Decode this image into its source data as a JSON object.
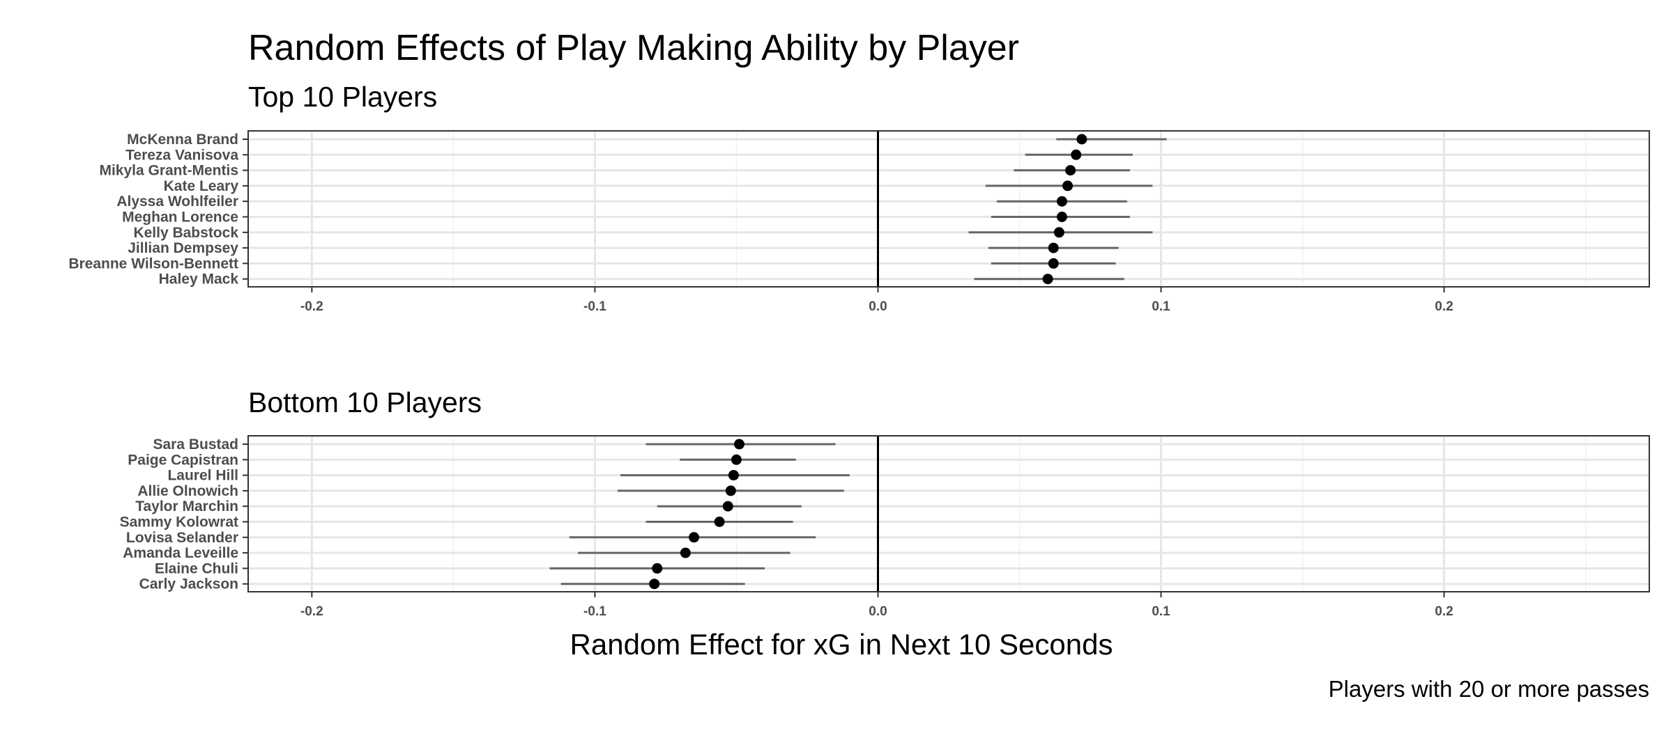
{
  "chart_data": {
    "type": "scatter",
    "title": "Random Effects of Play Making Ability by Player",
    "xlabel": "Random Effect for xG in Next 10 Seconds",
    "caption": "Players with 20 or more passes",
    "xlim": [
      -0.2225,
      0.2725
    ],
    "xticks": [
      -0.2,
      -0.1,
      0.0,
      0.1,
      0.2
    ],
    "xtick_labels": [
      "-0.2",
      "-0.1",
      "0.0",
      "0.1",
      "0.2"
    ],
    "reference_line": 0.0,
    "grid": true,
    "panels": [
      {
        "subtitle": "Top 10 Players",
        "players": [
          "McKenna Brand",
          "Tereza Vanisova",
          "Mikyla Grant-Mentis",
          "Kate Leary",
          "Alyssa Wohlfeiler",
          "Meghan Lorence",
          "Kelly Babstock",
          "Jillian Dempsey",
          "Breanne Wilson-Bennett",
          "Haley Mack"
        ],
        "estimate": [
          0.072,
          0.07,
          0.068,
          0.067,
          0.065,
          0.065,
          0.064,
          0.062,
          0.062,
          0.06
        ],
        "lower": [
          0.063,
          0.052,
          0.048,
          0.038,
          0.042,
          0.04,
          0.032,
          0.039,
          0.04,
          0.034
        ],
        "upper": [
          0.102,
          0.09,
          0.089,
          0.097,
          0.088,
          0.089,
          0.097,
          0.085,
          0.084,
          0.087
        ]
      },
      {
        "subtitle": "Bottom 10 Players",
        "players": [
          "Sara Bustad",
          "Paige Capistran",
          "Laurel Hill",
          "Allie Olnowich",
          "Taylor Marchin",
          "Sammy Kolowrat",
          "Lovisa Selander",
          "Amanda Leveille",
          "Elaine Chuli",
          "Carly Jackson"
        ],
        "estimate": [
          -0.049,
          -0.05,
          -0.051,
          -0.052,
          -0.053,
          -0.056,
          -0.065,
          -0.068,
          -0.078,
          -0.079
        ],
        "lower": [
          -0.082,
          -0.07,
          -0.091,
          -0.092,
          -0.078,
          -0.082,
          -0.109,
          -0.106,
          -0.116,
          -0.112
        ],
        "upper": [
          -0.015,
          -0.029,
          -0.01,
          -0.012,
          -0.027,
          -0.03,
          -0.022,
          -0.031,
          -0.04,
          -0.047
        ]
      }
    ]
  }
}
